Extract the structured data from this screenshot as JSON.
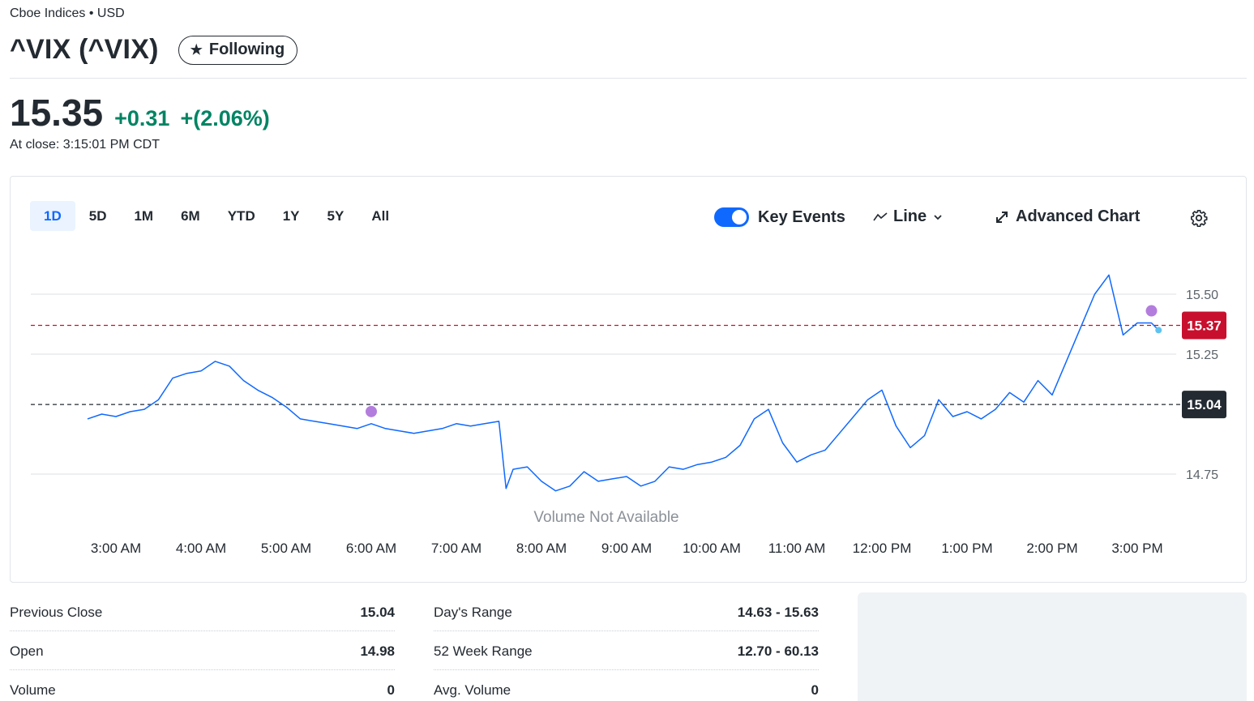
{
  "header": {
    "exchange": "Cboe Indices • USD",
    "ticker": "^VIX (^VIX)",
    "follow_label": "Following",
    "price": "15.35",
    "change": "+0.31",
    "change_pct": "+(2.06%)",
    "close_time": "At close: 3:15:01 PM CDT"
  },
  "chart_controls": {
    "ranges": [
      "1D",
      "5D",
      "1M",
      "6M",
      "YTD",
      "1Y",
      "5Y",
      "All"
    ],
    "active_range": "1D",
    "key_events_label": "Key Events",
    "key_events_on": true,
    "chart_type_label": "Line",
    "advanced_label": "Advanced Chart"
  },
  "chart_data": {
    "type": "line",
    "x_tick_labels": [
      "3:00 AM",
      "4:00 AM",
      "5:00 AM",
      "6:00 AM",
      "7:00 AM",
      "8:00 AM",
      "9:00 AM",
      "10:00 AM",
      "11:00 AM",
      "12:00 PM",
      "1:00 PM",
      "2:00 PM",
      "3:00 PM"
    ],
    "y_ticks": [
      15.5,
      15.25,
      14.75
    ],
    "ylim": [
      14.63,
      15.63
    ],
    "series": [
      {
        "x": [
          "2:40 AM",
          "2:50 AM",
          "3:00 AM",
          "3:10 AM",
          "3:20 AM",
          "3:30 AM",
          "3:40 AM",
          "3:50 AM",
          "4:00 AM",
          "4:10 AM",
          "4:20 AM",
          "4:30 AM",
          "4:40 AM",
          "4:50 AM",
          "5:00 AM",
          "5:10 AM",
          "5:20 AM",
          "5:30 AM",
          "5:40 AM",
          "5:50 AM",
          "6:00 AM",
          "6:10 AM",
          "6:20 AM",
          "6:30 AM",
          "6:40 AM",
          "6:50 AM",
          "7:00 AM",
          "7:10 AM",
          "7:20 AM",
          "7:30 AM",
          "7:35 AM",
          "7:40 AM",
          "7:50 AM",
          "8:00 AM",
          "8:10 AM",
          "8:20 AM",
          "8:30 AM",
          "8:40 AM",
          "8:50 AM",
          "9:00 AM",
          "9:10 AM",
          "9:20 AM",
          "9:30 AM",
          "9:40 AM",
          "9:50 AM",
          "10:00 AM",
          "10:10 AM",
          "10:20 AM",
          "10:30 AM",
          "10:40 AM",
          "10:50 AM",
          "11:00 AM",
          "11:10 AM",
          "11:20 AM",
          "11:30 AM",
          "11:40 AM",
          "11:50 AM",
          "12:00 PM",
          "12:10 PM",
          "12:20 PM",
          "12:30 PM",
          "12:40 PM",
          "12:50 PM",
          "1:00 PM",
          "1:10 PM",
          "1:20 PM",
          "1:30 PM",
          "1:40 PM",
          "1:50 PM",
          "2:00 PM",
          "2:10 PM",
          "2:20 PM",
          "2:30 PM",
          "2:40 PM",
          "2:50 PM",
          "3:00 PM",
          "3:10 PM",
          "3:15 PM"
        ],
        "values": [
          14.98,
          15.0,
          14.99,
          15.01,
          15.02,
          15.06,
          15.15,
          15.17,
          15.18,
          15.22,
          15.2,
          15.14,
          15.1,
          15.07,
          15.03,
          14.98,
          14.97,
          14.96,
          14.95,
          14.94,
          14.96,
          14.94,
          14.93,
          14.92,
          14.93,
          14.94,
          14.96,
          14.95,
          14.96,
          14.97,
          14.69,
          14.77,
          14.78,
          14.72,
          14.68,
          14.7,
          14.76,
          14.72,
          14.73,
          14.74,
          14.7,
          14.72,
          14.78,
          14.77,
          14.79,
          14.8,
          14.82,
          14.87,
          14.98,
          15.02,
          14.88,
          14.8,
          14.83,
          14.85,
          14.92,
          14.99,
          15.06,
          15.1,
          14.95,
          14.86,
          14.91,
          15.06,
          14.99,
          15.01,
          14.98,
          15.02,
          15.09,
          15.05,
          15.14,
          15.08,
          15.22,
          15.36,
          15.5,
          15.58,
          15.33,
          15.38,
          15.38,
          15.35
        ],
        "marker_x_labels": [
          "6:00 AM",
          "3:10 PM"
        ]
      }
    ],
    "reference_lines": [
      {
        "label": "15.37",
        "value": 15.37,
        "color": "#c8102e",
        "text_color": "#ffffff"
      },
      {
        "label": "15.04",
        "value": 15.04,
        "color": "#232a31",
        "text_color": "#ffffff"
      }
    ],
    "volume_note": "Volume Not Available",
    "line_color": "#0f69ff",
    "event_color": "#b37ddd"
  },
  "stats": {
    "col1": [
      {
        "label": "Previous Close",
        "value": "15.04"
      },
      {
        "label": "Open",
        "value": "14.98"
      },
      {
        "label": "Volume",
        "value": "0"
      }
    ],
    "col2": [
      {
        "label": "Day's Range",
        "value": "14.63 - 15.63"
      },
      {
        "label": "52 Week Range",
        "value": "12.70 - 60.13"
      },
      {
        "label": "Avg. Volume",
        "value": "0"
      }
    ]
  }
}
